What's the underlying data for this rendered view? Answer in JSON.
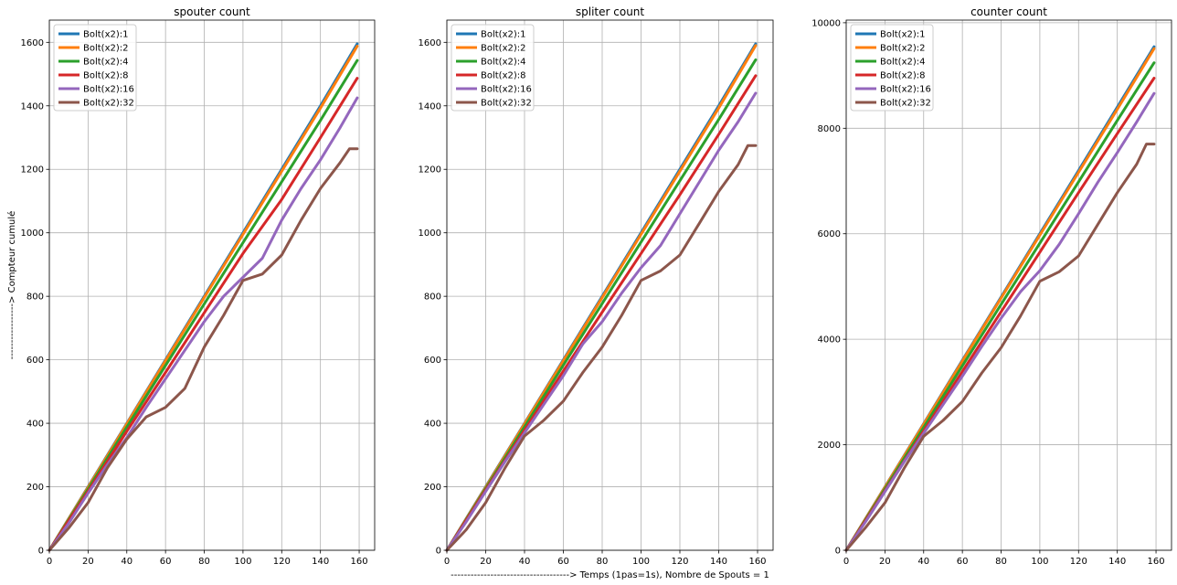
{
  "series_colors": [
    "#1f77b4",
    "#ff7f0e",
    "#2ca02c",
    "#d62728",
    "#9467bd",
    "#8c564b"
  ],
  "chart_data": [
    {
      "type": "line",
      "title": "spouter count",
      "xlabel": "",
      "ylabel": "-----------------> Compteur cumulé",
      "xlim": [
        0,
        168
      ],
      "ylim": [
        0,
        1670
      ],
      "xticks": [
        0,
        20,
        40,
        60,
        80,
        100,
        120,
        140,
        160
      ],
      "yticks": [
        0,
        200,
        400,
        600,
        800,
        1000,
        1200,
        1400,
        1600
      ],
      "grid": true,
      "legend_position": "upper-left",
      "series": [
        {
          "name": "Bolt(x2):1",
          "x": [
            0,
            20,
            40,
            60,
            80,
            100,
            120,
            140,
            159
          ],
          "y": [
            0,
            200,
            400,
            600,
            800,
            1000,
            1200,
            1400,
            1595
          ]
        },
        {
          "name": "Bolt(x2):2",
          "x": [
            0,
            20,
            40,
            60,
            80,
            100,
            120,
            140,
            159
          ],
          "y": [
            0,
            198,
            398,
            597,
            796,
            995,
            1194,
            1393,
            1588
          ]
        },
        {
          "name": "Bolt(x2):4",
          "x": [
            0,
            20,
            40,
            60,
            80,
            100,
            120,
            140,
            159
          ],
          "y": [
            0,
            193,
            388,
            582,
            776,
            969,
            1161,
            1354,
            1543
          ]
        },
        {
          "name": "Bolt(x2):8",
          "x": [
            0,
            20,
            40,
            60,
            80,
            100,
            120,
            140,
            159
          ],
          "y": [
            0,
            186,
            375,
            560,
            748,
            935,
            1105,
            1300,
            1487
          ]
        },
        {
          "name": "Bolt(x2):16",
          "x": [
            0,
            10,
            20,
            30,
            40,
            50,
            60,
            70,
            80,
            90,
            100,
            110,
            120,
            130,
            140,
            150,
            159
          ],
          "y": [
            0,
            85,
            180,
            270,
            355,
            450,
            540,
            630,
            720,
            800,
            860,
            920,
            1040,
            1140,
            1230,
            1330,
            1425
          ]
        },
        {
          "name": "Bolt(x2):32",
          "x": [
            0,
            10,
            20,
            30,
            40,
            50,
            60,
            70,
            80,
            90,
            100,
            110,
            120,
            130,
            140,
            150,
            155,
            159
          ],
          "y": [
            0,
            70,
            150,
            260,
            350,
            420,
            450,
            510,
            640,
            740,
            850,
            870,
            930,
            1040,
            1140,
            1220,
            1265,
            1265
          ]
        }
      ]
    },
    {
      "type": "line",
      "title": "spliter count",
      "xlabel": "------------------------------------> Temps (1pas=1s), Nombre de Spouts = 1",
      "ylabel": "",
      "xlim": [
        0,
        168
      ],
      "ylim": [
        0,
        1670
      ],
      "xticks": [
        0,
        20,
        40,
        60,
        80,
        100,
        120,
        140,
        160
      ],
      "yticks": [
        0,
        200,
        400,
        600,
        800,
        1000,
        1200,
        1400,
        1600
      ],
      "grid": true,
      "legend_position": "upper-left",
      "series": [
        {
          "name": "Bolt(x2):1",
          "x": [
            0,
            20,
            40,
            60,
            80,
            100,
            120,
            140,
            159
          ],
          "y": [
            0,
            200,
            400,
            600,
            800,
            1000,
            1200,
            1400,
            1595
          ]
        },
        {
          "name": "Bolt(x2):2",
          "x": [
            0,
            20,
            40,
            60,
            80,
            100,
            120,
            140,
            159
          ],
          "y": [
            0,
            198,
            398,
            597,
            796,
            995,
            1194,
            1393,
            1590
          ]
        },
        {
          "name": "Bolt(x2):4",
          "x": [
            0,
            20,
            40,
            60,
            80,
            100,
            120,
            140,
            159
          ],
          "y": [
            0,
            194,
            389,
            583,
            777,
            971,
            1164,
            1357,
            1545
          ]
        },
        {
          "name": "Bolt(x2):8",
          "x": [
            0,
            20,
            40,
            60,
            80,
            100,
            120,
            140,
            159
          ],
          "y": [
            0,
            190,
            378,
            565,
            750,
            935,
            1120,
            1310,
            1495
          ]
        },
        {
          "name": "Bolt(x2):16",
          "x": [
            0,
            10,
            20,
            30,
            40,
            50,
            60,
            70,
            80,
            90,
            100,
            110,
            120,
            130,
            140,
            150,
            159
          ],
          "y": [
            0,
            90,
            185,
            280,
            370,
            460,
            550,
            650,
            720,
            810,
            890,
            960,
            1060,
            1160,
            1260,
            1350,
            1440
          ]
        },
        {
          "name": "Bolt(x2):32",
          "x": [
            0,
            10,
            20,
            30,
            40,
            50,
            60,
            70,
            80,
            90,
            100,
            110,
            120,
            130,
            140,
            150,
            155,
            159
          ],
          "y": [
            0,
            65,
            150,
            260,
            360,
            410,
            470,
            560,
            640,
            740,
            850,
            880,
            930,
            1030,
            1130,
            1215,
            1275,
            1275
          ]
        }
      ]
    },
    {
      "type": "line",
      "title": "counter count",
      "xlabel": "",
      "ylabel": "",
      "xlim": [
        0,
        168
      ],
      "ylim": [
        0,
        10050
      ],
      "xticks": [
        0,
        20,
        40,
        60,
        80,
        100,
        120,
        140,
        160
      ],
      "yticks": [
        0,
        2000,
        4000,
        6000,
        8000,
        10000
      ],
      "grid": true,
      "legend_position": "upper-left",
      "series": [
        {
          "name": "Bolt(x2):1",
          "x": [
            0,
            20,
            40,
            60,
            80,
            100,
            120,
            140,
            159
          ],
          "y": [
            0,
            1200,
            2400,
            3600,
            4800,
            6000,
            7200,
            8400,
            9545
          ]
        },
        {
          "name": "Bolt(x2):2",
          "x": [
            0,
            20,
            40,
            60,
            80,
            100,
            120,
            140,
            159
          ],
          "y": [
            0,
            1195,
            2390,
            3585,
            4780,
            5975,
            7165,
            8360,
            9510
          ]
        },
        {
          "name": "Bolt(x2):4",
          "x": [
            0,
            20,
            40,
            60,
            80,
            100,
            120,
            140,
            159
          ],
          "y": [
            0,
            1165,
            2330,
            3495,
            4660,
            5820,
            6985,
            8150,
            9240
          ]
        },
        {
          "name": "Bolt(x2):8",
          "x": [
            0,
            20,
            40,
            60,
            80,
            100,
            120,
            140,
            159
          ],
          "y": [
            0,
            1130,
            2260,
            3390,
            4520,
            5650,
            6780,
            7900,
            8950
          ]
        },
        {
          "name": "Bolt(x2):16",
          "x": [
            0,
            10,
            20,
            30,
            40,
            50,
            60,
            70,
            80,
            90,
            100,
            110,
            120,
            130,
            140,
            150,
            159
          ],
          "y": [
            0,
            540,
            1110,
            1680,
            2220,
            2760,
            3300,
            3860,
            4400,
            4900,
            5300,
            5800,
            6380,
            6980,
            7540,
            8120,
            8660
          ]
        },
        {
          "name": "Bolt(x2):32",
          "x": [
            0,
            10,
            20,
            30,
            40,
            50,
            60,
            70,
            80,
            90,
            100,
            110,
            120,
            130,
            140,
            150,
            155,
            159
          ],
          "y": [
            0,
            430,
            900,
            1560,
            2160,
            2460,
            2820,
            3360,
            3840,
            4440,
            5100,
            5280,
            5580,
            6180,
            6780,
            7320,
            7700,
            7700
          ]
        }
      ]
    }
  ]
}
